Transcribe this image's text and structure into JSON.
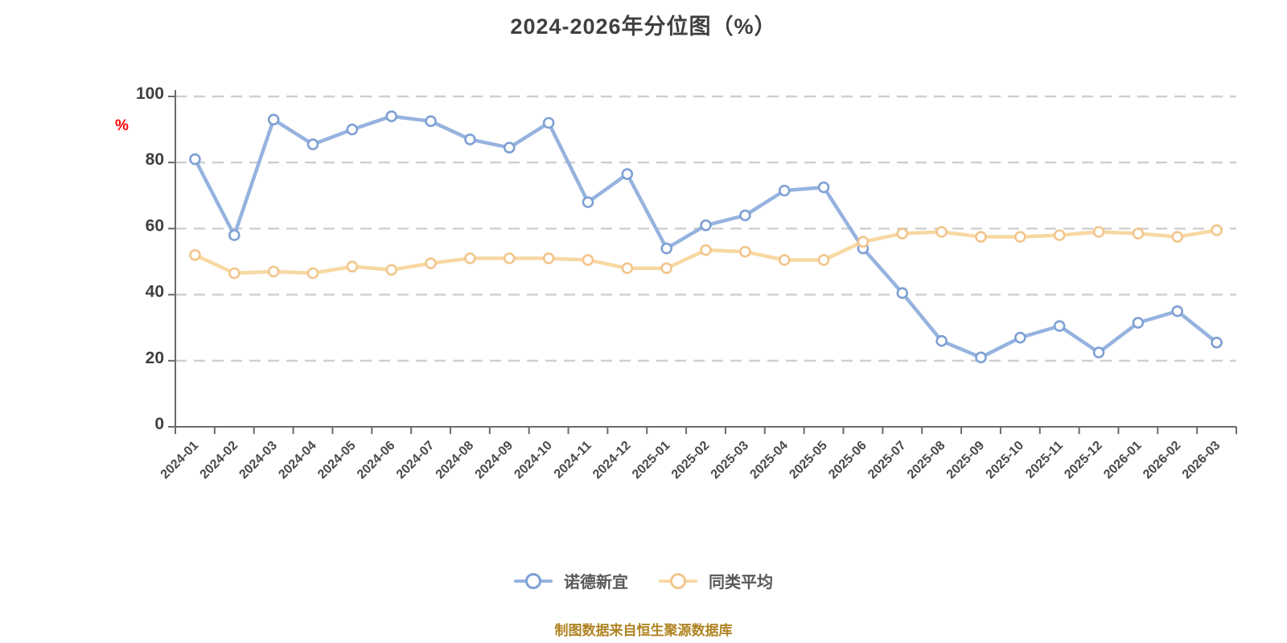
{
  "page": {
    "background": "#ffffff"
  },
  "footer": {
    "caption": "制图数据来自恒生聚源数据库"
  },
  "colors": {
    "grid": "#cfcfcf",
    "axis": "#6b6b6b",
    "title_text": "#3f3f3f",
    "tick_text": "#4a4a4a",
    "legend_text": "#595959",
    "unit_text": "#ff0000",
    "caption_text": "#b08322",
    "marker_fill": "#ffffff"
  },
  "chart_data": {
    "type": "line",
    "title": "2024-2026年分位图（%）",
    "xlabel": "",
    "ylabel": "%",
    "ylim": [
      0,
      100
    ],
    "yticks": [
      0,
      20,
      40,
      60,
      80,
      100
    ],
    "grid": "horizontal-dashed",
    "legend_position": "bottom-center",
    "marker": "circle-white-fill",
    "categories": [
      "2024-01",
      "2024-02",
      "2024-03",
      "2024-04",
      "2024-05",
      "2024-06",
      "2024-07",
      "2024-08",
      "2024-09",
      "2024-10",
      "2024-11",
      "2024-12",
      "2025-01",
      "2025-02",
      "2025-03",
      "2025-04",
      "2025-05",
      "2025-06",
      "2025-07",
      "2025-08",
      "2025-09",
      "2025-10",
      "2025-11",
      "2025-12",
      "2026-01",
      "2026-02",
      "2026-03"
    ],
    "series": [
      {
        "name": "诺德新宜",
        "color": "#96b3df",
        "marker_color": "#7ea0d4",
        "values": [
          81,
          58,
          93,
          85.5,
          90,
          94,
          92.5,
          87,
          84.5,
          92,
          68,
          76.5,
          54,
          61,
          64,
          71.5,
          72.5,
          54,
          40.5,
          26,
          21,
          27,
          30.5,
          22.5,
          31.5,
          35,
          25.5
        ]
      },
      {
        "name": "同类平均",
        "color": "#f8d8a2",
        "marker_color": "#f2c58c",
        "values": [
          52,
          46.5,
          47,
          46.5,
          48.5,
          47.5,
          49.5,
          51,
          51,
          51,
          50.5,
          48,
          48,
          53.5,
          53,
          50.5,
          50.5,
          56,
          58.5,
          59,
          57.5,
          57.5,
          58,
          59,
          58.5,
          57.5,
          59.5
        ]
      }
    ]
  }
}
